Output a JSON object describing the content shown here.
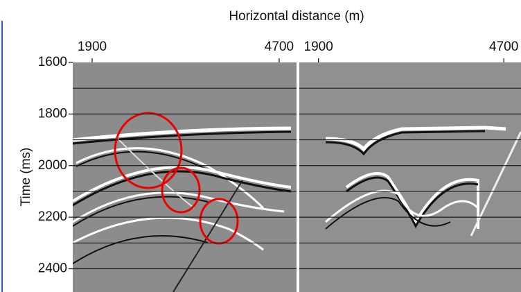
{
  "chart_data": {
    "type": "image",
    "title": "Horizontal distance (m)",
    "ylabel": "Time (ms)",
    "ylim": [
      1600,
      2490
    ],
    "y_inverted": true,
    "yticks": [
      1600,
      1800,
      2000,
      2200,
      2400
    ],
    "grid_lines": [
      1700,
      1800,
      1900,
      2000,
      2100,
      2200,
      2300,
      2400
    ],
    "panels": [
      {
        "xlim": [
          1610,
          4960
        ],
        "xticks": [
          1900,
          4700
        ]
      },
      {
        "xlim": [
          1610,
          4960
        ],
        "xticks": [
          1900,
          4700
        ]
      }
    ]
  }
}
